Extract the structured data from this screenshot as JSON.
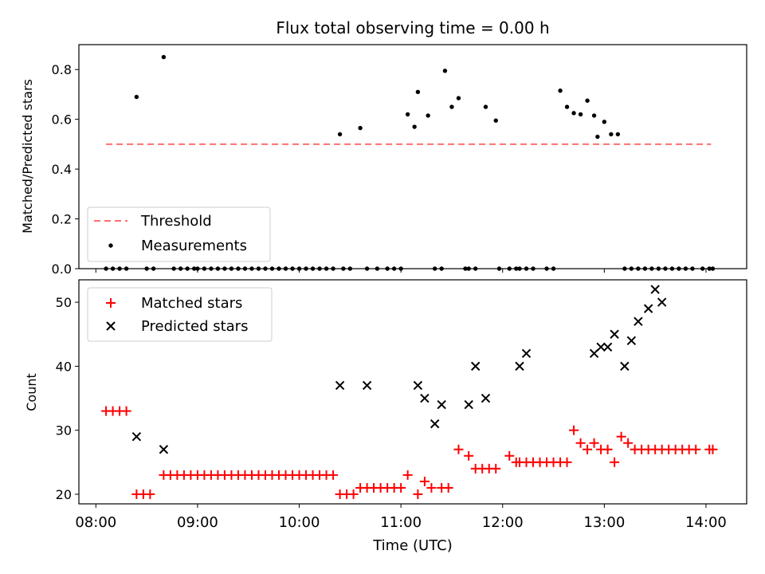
{
  "chart_data": [
    {
      "type": "scatter",
      "title": "Flux total observing time = 0.00 h",
      "xlabel": "",
      "ylabel": "Matched/Predicted stars",
      "ylim": [
        0,
        0.9
      ],
      "xlim_hours": [
        7.833,
        14.4
      ],
      "yticks": [
        0.0,
        0.2,
        0.4,
        0.6,
        0.8
      ],
      "ytick_labels": [
        "0.0",
        "0.2",
        "0.4",
        "0.6",
        "0.8"
      ],
      "legend_position": "lower-left",
      "grid": false,
      "series": [
        {
          "name": "Threshold",
          "kind": "line",
          "style": "dashed",
          "color": "#ff6f6f",
          "x": [
            "08:06",
            "14:03"
          ],
          "y": [
            0.5,
            0.5
          ]
        },
        {
          "name": "Measurements",
          "kind": "points",
          "marker": "dot",
          "color": "#000000",
          "x": [
            "08:06",
            "08:10",
            "08:14",
            "08:18",
            "08:24",
            "08:30",
            "08:34",
            "08:40",
            "08:46",
            "08:50",
            "08:54",
            "08:58",
            "09:00",
            "09:04",
            "09:08",
            "09:12",
            "09:16",
            "09:20",
            "09:24",
            "09:28",
            "09:32",
            "09:36",
            "09:40",
            "09:44",
            "09:48",
            "09:52",
            "09:56",
            "10:00",
            "10:04",
            "10:08",
            "10:12",
            "10:16",
            "10:20",
            "10:24",
            "10:26",
            "10:30",
            "10:36",
            "10:40",
            "10:46",
            "10:52",
            "10:56",
            "11:00",
            "11:04",
            "11:08",
            "11:10",
            "11:16",
            "11:20",
            "11:24",
            "11:26",
            "11:30",
            "11:34",
            "11:38",
            "11:40",
            "11:44",
            "11:50",
            "11:56",
            "11:58",
            "12:04",
            "12:08",
            "12:10",
            "12:14",
            "12:18",
            "12:26",
            "12:30",
            "12:34",
            "12:38",
            "12:42",
            "12:46",
            "12:50",
            "12:54",
            "12:56",
            "13:00",
            "13:04",
            "13:08",
            "13:12",
            "13:16",
            "13:20",
            "13:24",
            "13:28",
            "13:32",
            "13:36",
            "13:40",
            "13:44",
            "13:48",
            "13:52",
            "13:58",
            "14:02",
            "14:04"
          ],
          "y": [
            0,
            0,
            0,
            0,
            0.69,
            0,
            0,
            0.85,
            0,
            0,
            0,
            0,
            0,
            0,
            0,
            0,
            0,
            0,
            0,
            0,
            0,
            0,
            0,
            0,
            0,
            0,
            0,
            0,
            0,
            0,
            0,
            0,
            0,
            0.54,
            0,
            0,
            0.565,
            0,
            0,
            0,
            0,
            0,
            0.62,
            0.57,
            0.71,
            0.615,
            0,
            0,
            0.795,
            0.65,
            0.685,
            0,
            0,
            0,
            0.65,
            0.595,
            0,
            0,
            0,
            0,
            0,
            0,
            0,
            0,
            0.715,
            0.65,
            0.625,
            0.62,
            0.675,
            0.615,
            0.53,
            0.59,
            0.54,
            0.54,
            0,
            0,
            0,
            0,
            0,
            0,
            0,
            0,
            0,
            0,
            0,
            0,
            0,
            0
          ],
          "x_raw_note": ""
        }
      ]
    },
    {
      "type": "scatter",
      "title": "",
      "xlabel": "Time (UTC)",
      "ylabel": "Count",
      "ylim": [
        18.5,
        53.5
      ],
      "xlim_hours": [
        7.833,
        14.4
      ],
      "yticks": [
        20,
        30,
        40,
        50
      ],
      "ytick_labels": [
        "20",
        "30",
        "40",
        "50"
      ],
      "xticks": [
        "08:00",
        "09:00",
        "10:00",
        "11:00",
        "12:00",
        "13:00",
        "14:00"
      ],
      "legend_position": "upper-left",
      "grid": false,
      "series": [
        {
          "name": "Matched stars",
          "marker": "plus",
          "color": "#ff0000",
          "x": [
            "08:06",
            "08:10",
            "08:14",
            "08:18",
            "08:24",
            "08:28",
            "08:32",
            "08:40",
            "08:44",
            "08:48",
            "08:52",
            "08:56",
            "09:00",
            "09:04",
            "09:08",
            "09:12",
            "09:16",
            "09:20",
            "09:24",
            "09:28",
            "09:32",
            "09:36",
            "09:40",
            "09:44",
            "09:48",
            "09:52",
            "09:56",
            "10:00",
            "10:04",
            "10:08",
            "10:12",
            "10:16",
            "10:20",
            "10:24",
            "10:28",
            "10:32",
            "10:36",
            "10:40",
            "10:44",
            "10:48",
            "10:52",
            "10:56",
            "11:00",
            "11:04",
            "11:10",
            "11:14",
            "11:18",
            "11:24",
            "11:28",
            "11:34",
            "11:40",
            "11:44",
            "11:48",
            "11:52",
            "11:56",
            "12:04",
            "12:08",
            "12:10",
            "12:14",
            "12:18",
            "12:22",
            "12:26",
            "12:30",
            "12:34",
            "12:38",
            "12:42",
            "12:46",
            "12:50",
            "12:54",
            "12:58",
            "13:02",
            "13:06",
            "13:10",
            "13:14",
            "13:18",
            "13:22",
            "13:26",
            "13:30",
            "13:34",
            "13:38",
            "13:42",
            "13:46",
            "13:50",
            "13:54",
            "14:02",
            "14:04"
          ],
          "y": [
            33,
            33,
            33,
            33,
            20,
            20,
            20,
            23,
            23,
            23,
            23,
            23,
            23,
            23,
            23,
            23,
            23,
            23,
            23,
            23,
            23,
            23,
            23,
            23,
            23,
            23,
            23,
            23,
            23,
            23,
            23,
            23,
            23,
            20,
            20,
            20,
            21,
            21,
            21,
            21,
            21,
            21,
            21,
            23,
            20,
            22,
            21,
            21,
            21,
            27,
            26,
            24,
            24,
            24,
            24,
            26,
            25,
            25,
            25,
            25,
            25,
            25,
            25,
            25,
            25,
            30,
            28,
            27,
            28,
            27,
            27,
            25,
            29,
            28,
            27,
            27,
            27,
            27,
            27,
            27,
            27,
            27,
            27,
            27,
            27,
            27
          ]
        },
        {
          "name": "Predicted stars",
          "marker": "x",
          "color": "#000000",
          "x": [
            "08:24",
            "08:40",
            "10:24",
            "10:40",
            "11:10",
            "11:14",
            "11:20",
            "11:24",
            "11:40",
            "11:44",
            "11:50",
            "12:10",
            "12:14",
            "12:54",
            "12:58",
            "13:02",
            "13:06",
            "13:12",
            "13:16",
            "13:20",
            "13:26",
            "13:30",
            "13:34"
          ],
          "y": [
            29,
            27,
            37,
            37,
            37,
            35,
            31,
            34,
            34,
            40,
            35,
            40,
            42,
            42,
            43,
            43,
            45,
            40,
            44,
            47,
            49,
            52,
            50
          ]
        }
      ]
    }
  ]
}
